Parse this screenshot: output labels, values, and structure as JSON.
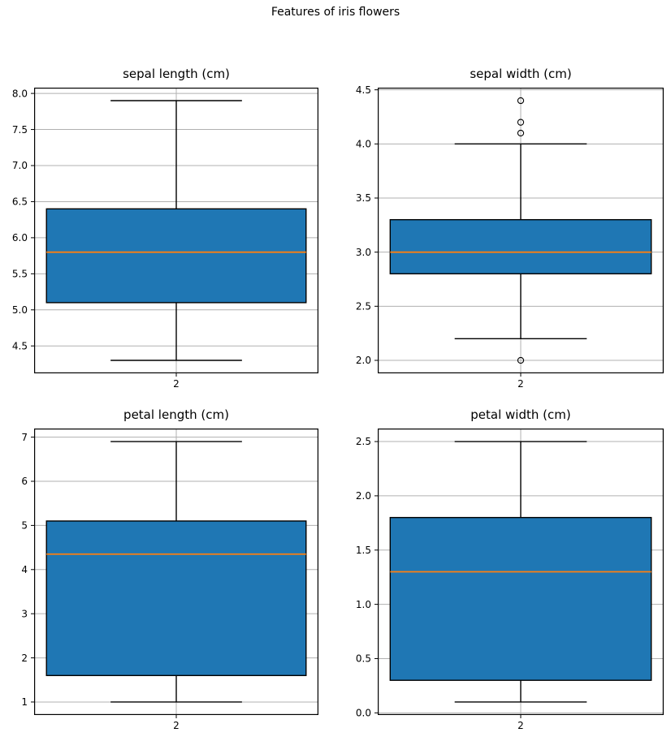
{
  "figure": {
    "suptitle": "Features of iris flowers",
    "background": "#ffffff"
  },
  "colors": {
    "box_fill": "#1f77b4",
    "box_edge": "#000000",
    "median_line": "#ff7f0e",
    "whisker": "#000000",
    "grid": "#b0b0b0",
    "spine": "#000000",
    "tick_label": "#000000"
  },
  "chart_data": [
    {
      "type": "box",
      "title": "sepal length (cm)",
      "x_tick_labels": [
        "2"
      ],
      "y_ticks": [
        4.5,
        5.0,
        5.5,
        6.0,
        6.5,
        7.0,
        7.5,
        8.0
      ],
      "y_tick_labels": [
        "4.5",
        "5.0",
        "5.5",
        "6.0",
        "6.5",
        "7.0",
        "7.5",
        "8.0"
      ],
      "ylim": [
        4.12,
        8.08
      ],
      "grid": true,
      "stats": {
        "whisker_low": 4.3,
        "q1": 5.1,
        "median": 5.8,
        "q3": 6.4,
        "whisker_high": 7.9,
        "outliers": []
      }
    },
    {
      "type": "box",
      "title": "sepal width (cm)",
      "x_tick_labels": [
        "2"
      ],
      "y_ticks": [
        2.0,
        2.5,
        3.0,
        3.5,
        4.0,
        4.5
      ],
      "y_tick_labels": [
        "2.0",
        "2.5",
        "3.0",
        "3.5",
        "4.0",
        "4.5"
      ],
      "ylim": [
        1.88,
        4.52
      ],
      "grid": true,
      "stats": {
        "whisker_low": 2.2,
        "q1": 2.8,
        "median": 3.0,
        "q3": 3.3,
        "whisker_high": 4.0,
        "outliers": [
          2.0,
          4.1,
          4.2,
          4.4
        ]
      }
    },
    {
      "type": "box",
      "title": "petal length (cm)",
      "x_tick_labels": [
        "2"
      ],
      "y_ticks": [
        1,
        2,
        3,
        4,
        5,
        6,
        7
      ],
      "y_tick_labels": [
        "1",
        "2",
        "3",
        "4",
        "5",
        "6",
        "7"
      ],
      "ylim": [
        0.705,
        7.195
      ],
      "grid": true,
      "stats": {
        "whisker_low": 1.0,
        "q1": 1.6,
        "median": 4.35,
        "q3": 5.1,
        "whisker_high": 6.9,
        "outliers": []
      }
    },
    {
      "type": "box",
      "title": "petal width (cm)",
      "x_tick_labels": [
        "2"
      ],
      "y_ticks": [
        0.0,
        0.5,
        1.0,
        1.5,
        2.0,
        2.5
      ],
      "y_tick_labels": [
        "0.0",
        "0.5",
        "1.0",
        "1.5",
        "2.0",
        "2.5"
      ],
      "ylim": [
        -0.02,
        2.62
      ],
      "grid": true,
      "stats": {
        "whisker_low": 0.1,
        "q1": 0.3,
        "median": 1.3,
        "q3": 1.8,
        "whisker_high": 2.5,
        "outliers": []
      }
    }
  ]
}
